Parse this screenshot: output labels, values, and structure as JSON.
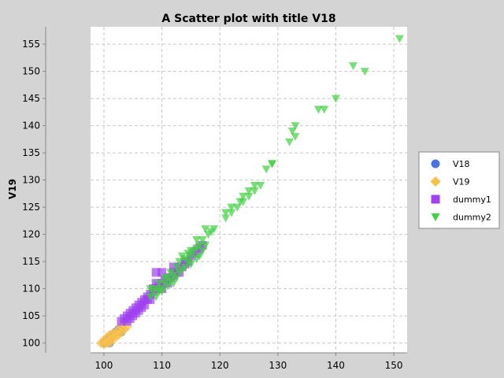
{
  "chart_data": {
    "type": "scatter",
    "title": "A Scatter plot with title V18",
    "xlabel": "",
    "ylabel": "V19",
    "xlim": [
      97.7,
      152.3
    ],
    "ylim": [
      98.2,
      158.2
    ],
    "xticks": [
      100,
      110,
      120,
      130,
      140,
      150
    ],
    "yticks": [
      100,
      105,
      110,
      115,
      120,
      125,
      130,
      135,
      140,
      145,
      150,
      155
    ],
    "grid": true,
    "legend": "right",
    "series": [
      {
        "name": "V18",
        "marker": "circle",
        "color": "#4c72e0",
        "points": [
          [
            100,
            100
          ],
          [
            100.5,
            100.5
          ],
          [
            101,
            101
          ],
          [
            101.5,
            101.5
          ],
          [
            102,
            102
          ],
          [
            102.5,
            102.5
          ],
          [
            103,
            102
          ],
          [
            101,
            100
          ]
        ]
      },
      {
        "name": "V19",
        "marker": "diamond",
        "color": "#f8c048",
        "points": [
          [
            99.5,
            100
          ],
          [
            100,
            100.5
          ],
          [
            100,
            99.8
          ],
          [
            100.5,
            100
          ],
          [
            100.5,
            101
          ],
          [
            101,
            100
          ],
          [
            101,
            100.6
          ],
          [
            101,
            101.5
          ],
          [
            101.5,
            100.8
          ],
          [
            101.5,
            101.7
          ],
          [
            102,
            101
          ],
          [
            102,
            102
          ],
          [
            102.5,
            101.5
          ],
          [
            102.5,
            102.3
          ],
          [
            103,
            102
          ],
          [
            103,
            103
          ],
          [
            103.5,
            102.5
          ],
          [
            104,
            103
          ]
        ]
      },
      {
        "name": "dummy1",
        "marker": "square",
        "color": "#a040f0",
        "points": [
          [
            103,
            104
          ],
          [
            103.5,
            104.5
          ],
          [
            104,
            104
          ],
          [
            104,
            105
          ],
          [
            104.5,
            104.5
          ],
          [
            104.5,
            105.5
          ],
          [
            105,
            105
          ],
          [
            105,
            106
          ],
          [
            105.5,
            105.5
          ],
          [
            105.5,
            106.5
          ],
          [
            106,
            106
          ],
          [
            106,
            107
          ],
          [
            106.5,
            106.5
          ],
          [
            106.5,
            107.5
          ],
          [
            107,
            107
          ],
          [
            107,
            108
          ],
          [
            107.5,
            108
          ],
          [
            107.5,
            108.5
          ],
          [
            108,
            108
          ],
          [
            108,
            109
          ],
          [
            108.5,
            109.5
          ],
          [
            108.5,
            110
          ],
          [
            109,
            110
          ],
          [
            109,
            111
          ],
          [
            109.5,
            110.5
          ],
          [
            110,
            110
          ],
          [
            110,
            111
          ],
          [
            110.5,
            111.5
          ],
          [
            111,
            111
          ],
          [
            111,
            112
          ],
          [
            111.5,
            112
          ],
          [
            112,
            112.5
          ],
          [
            112,
            113
          ],
          [
            112.5,
            113
          ],
          [
            113,
            113
          ],
          [
            113,
            114
          ],
          [
            113.5,
            114
          ],
          [
            114,
            114.5
          ],
          [
            114,
            115
          ],
          [
            114.5,
            115
          ],
          [
            115,
            116
          ],
          [
            115.5,
            116.5
          ],
          [
            116,
            117
          ],
          [
            116.5,
            117.5
          ],
          [
            117,
            118
          ],
          [
            109,
            113
          ],
          [
            110,
            113
          ],
          [
            112,
            114
          ]
        ]
      },
      {
        "name": "dummy2",
        "marker": "triangle-down",
        "color": "#40d040",
        "points": [
          [
            108,
            108.5
          ],
          [
            108,
            110
          ],
          [
            108.5,
            109.5
          ],
          [
            109,
            108.5
          ],
          [
            109,
            110
          ],
          [
            109.5,
            109.5
          ],
          [
            109.5,
            111
          ],
          [
            110,
            110
          ],
          [
            110,
            109.5
          ],
          [
            110.5,
            111
          ],
          [
            110.5,
            112
          ],
          [
            111,
            110.5
          ],
          [
            111,
            112
          ],
          [
            111.5,
            111.5
          ],
          [
            111.5,
            113
          ],
          [
            112,
            111
          ],
          [
            112,
            112.5
          ],
          [
            112.5,
            112
          ],
          [
            112.5,
            114
          ],
          [
            113,
            113
          ],
          [
            113,
            115
          ],
          [
            113.5,
            113.5
          ],
          [
            113.5,
            116
          ],
          [
            114,
            114
          ],
          [
            114,
            115.5
          ],
          [
            114.5,
            115
          ],
          [
            114.5,
            116.5
          ],
          [
            115,
            114.5
          ],
          [
            115,
            116
          ],
          [
            115,
            117
          ],
          [
            115.5,
            117
          ],
          [
            116,
            115.5
          ],
          [
            116,
            117.5
          ],
          [
            116,
            119
          ],
          [
            116.5,
            116
          ],
          [
            116.5,
            118
          ],
          [
            117,
            117
          ],
          [
            117,
            119
          ],
          [
            117.5,
            118
          ],
          [
            117.5,
            121
          ],
          [
            118,
            120
          ],
          [
            118.5,
            120.5
          ],
          [
            119,
            121
          ],
          [
            121,
            123
          ],
          [
            121,
            124
          ],
          [
            122,
            124
          ],
          [
            122,
            125
          ],
          [
            123,
            125
          ],
          [
            123.5,
            126
          ],
          [
            124,
            126
          ],
          [
            124,
            127
          ],
          [
            125,
            127
          ],
          [
            125,
            128
          ],
          [
            126,
            128
          ],
          [
            126,
            129
          ],
          [
            127,
            129
          ],
          [
            128,
            132
          ],
          [
            129,
            133
          ],
          [
            129,
            133
          ],
          [
            132,
            137
          ],
          [
            132.5,
            139
          ],
          [
            133,
            138
          ],
          [
            133,
            140
          ],
          [
            137,
            143
          ],
          [
            138,
            143
          ],
          [
            140,
            145
          ],
          [
            143,
            151
          ],
          [
            145,
            150
          ],
          [
            151,
            156
          ]
        ]
      }
    ]
  }
}
